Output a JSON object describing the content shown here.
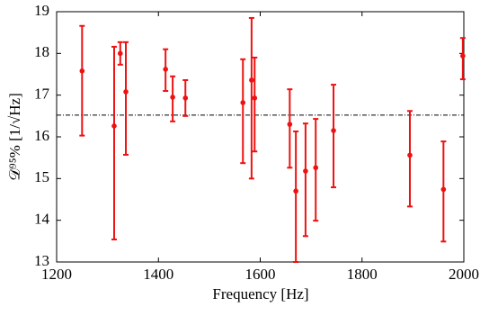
{
  "chart_data": {
    "type": "errorbar",
    "x_label": "Frequency [Hz]",
    "y_label": "𝒟⁹⁵% [1/√Hz]",
    "x": [
      1250,
      1313,
      1325,
      1336,
      1414,
      1428,
      1453,
      1566,
      1583,
      1589,
      1658,
      1670,
      1689,
      1709,
      1744,
      1894,
      1960,
      1998
    ],
    "values": [
      17.58,
      16.26,
      18.0,
      17.08,
      17.62,
      16.95,
      16.93,
      16.82,
      17.36,
      16.93,
      16.3,
      14.7,
      15.18,
      15.26,
      16.15,
      15.56,
      14.74,
      17.94
    ],
    "upper": [
      18.66,
      18.16,
      18.27,
      18.27,
      18.1,
      17.45,
      17.36,
      17.86,
      18.85,
      17.9,
      17.14,
      16.13,
      16.32,
      16.43,
      17.25,
      16.62,
      15.89,
      18.37
    ],
    "lower": [
      16.03,
      13.54,
      17.73,
      15.57,
      17.1,
      16.37,
      16.5,
      15.37,
      15.0,
      15.65,
      15.26,
      13.0,
      13.62,
      13.99,
      14.79,
      14.33,
      13.49,
      17.38
    ],
    "color": "#ee1111",
    "threshold": 16.52,
    "threshold_color": "#000000",
    "xlim": [
      1200,
      2000
    ],
    "xticks": [
      1200,
      1400,
      1600,
      1800,
      2000
    ],
    "ylim": [
      13,
      19
    ],
    "yticks": [
      13,
      14,
      15,
      16,
      17,
      18,
      19
    ]
  }
}
